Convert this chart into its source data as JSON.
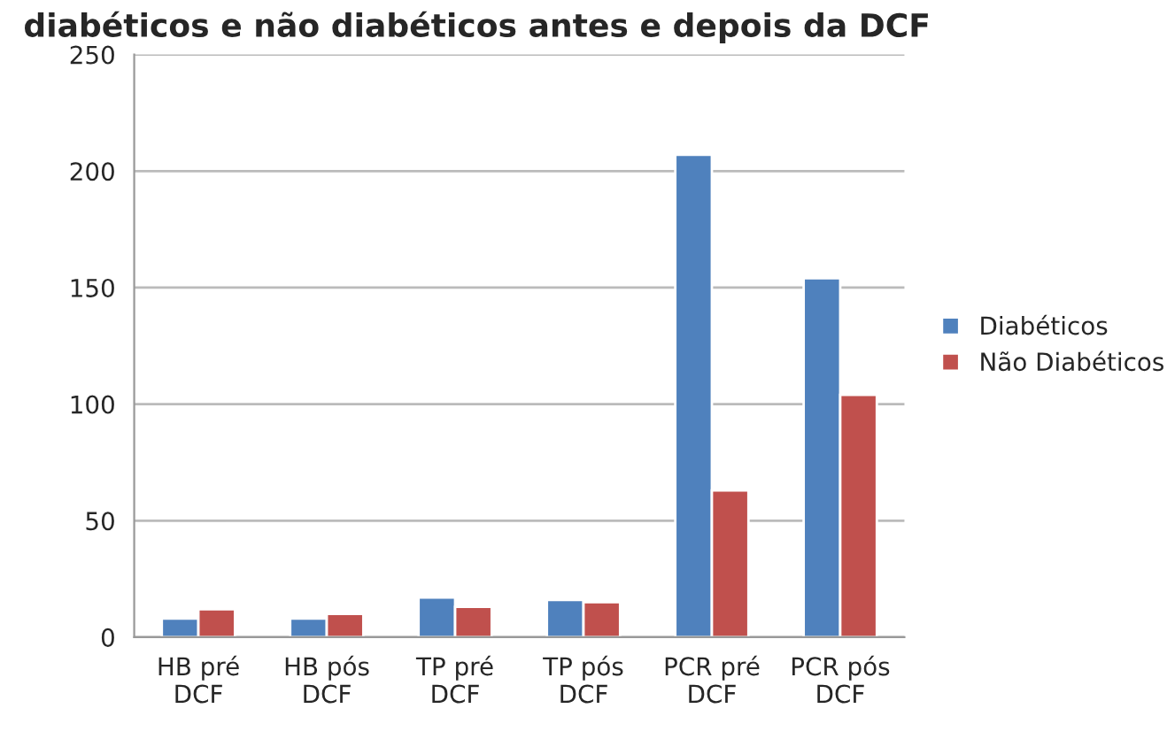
{
  "chart_data": {
    "type": "bar",
    "title": "diabéticos e não diabéticos antes e depois da DCF",
    "categories": [
      "HB pré\nDCF",
      "HB pós\nDCF",
      "TP pré\nDCF",
      "TP pós\nDCF",
      "PCR pré\nDCF",
      "PCR pós\nDCF"
    ],
    "series": [
      {
        "name": "Diabéticos",
        "color": "#4f81bd",
        "values": [
          8,
          8,
          17,
          16,
          207,
          154
        ]
      },
      {
        "name": "Não Diabéticos",
        "color": "#c0504d",
        "values": [
          12,
          10,
          13,
          15,
          63,
          104
        ]
      }
    ],
    "ylim": [
      0,
      250
    ],
    "yticks": [
      0,
      50,
      100,
      150,
      200,
      250
    ],
    "grid": "y",
    "legend": "right"
  }
}
